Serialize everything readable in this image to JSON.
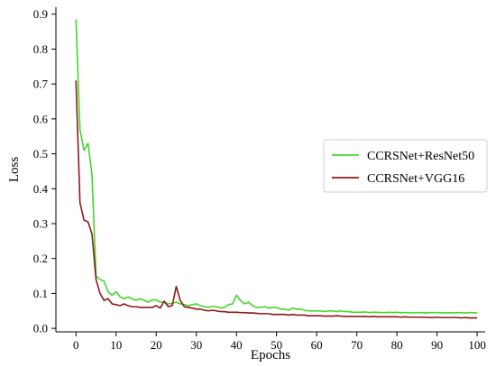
{
  "chart_data": {
    "type": "line",
    "xlabel": "Epochs",
    "ylabel": "Loss",
    "xlim": [
      -5,
      102
    ],
    "ylim": [
      -0.01,
      0.92
    ],
    "x_ticks": [
      0,
      10,
      20,
      30,
      40,
      50,
      60,
      70,
      80,
      90,
      100
    ],
    "y_ticks": [
      0.0,
      0.1,
      0.2,
      0.3,
      0.4,
      0.5,
      0.6,
      0.7,
      0.8,
      0.9
    ],
    "x_tick_labels": [
      "0",
      "10",
      "20",
      "30",
      "40",
      "50",
      "60",
      "70",
      "80",
      "90",
      "100"
    ],
    "y_tick_labels": [
      "0.0",
      "0.1",
      "0.2",
      "0.3",
      "0.4",
      "0.5",
      "0.6",
      "0.7",
      "0.8",
      "0.9"
    ],
    "legend_position": "center-right",
    "x": [
      0,
      1,
      2,
      3,
      4,
      5,
      6,
      7,
      8,
      9,
      10,
      11,
      12,
      13,
      14,
      15,
      16,
      17,
      18,
      19,
      20,
      21,
      22,
      23,
      24,
      25,
      26,
      27,
      28,
      29,
      30,
      31,
      32,
      33,
      34,
      35,
      36,
      37,
      38,
      39,
      40,
      41,
      42,
      43,
      44,
      45,
      46,
      47,
      48,
      49,
      50,
      51,
      52,
      53,
      54,
      55,
      56,
      57,
      58,
      59,
      60,
      61,
      62,
      63,
      64,
      65,
      66,
      67,
      68,
      69,
      70,
      71,
      72,
      73,
      74,
      75,
      76,
      77,
      78,
      79,
      80,
      81,
      82,
      83,
      84,
      85,
      86,
      87,
      88,
      89,
      90,
      91,
      92,
      93,
      94,
      95,
      96,
      97,
      98,
      99,
      100
    ],
    "series": [
      {
        "name": "CCRSNet+ResNet50",
        "color": "#44d62c",
        "values": [
          0.885,
          0.57,
          0.51,
          0.53,
          0.44,
          0.15,
          0.14,
          0.135,
          0.105,
          0.095,
          0.105,
          0.09,
          0.085,
          0.09,
          0.085,
          0.08,
          0.085,
          0.08,
          0.075,
          0.082,
          0.082,
          0.075,
          0.075,
          0.07,
          0.072,
          0.075,
          0.07,
          0.068,
          0.065,
          0.068,
          0.07,
          0.065,
          0.062,
          0.06,
          0.063,
          0.062,
          0.058,
          0.06,
          0.068,
          0.07,
          0.095,
          0.08,
          0.07,
          0.075,
          0.065,
          0.06,
          0.06,
          0.062,
          0.058,
          0.06,
          0.06,
          0.055,
          0.055,
          0.052,
          0.058,
          0.055,
          0.055,
          0.052,
          0.05,
          0.05,
          0.05,
          0.05,
          0.048,
          0.05,
          0.05,
          0.048,
          0.05,
          0.048,
          0.048,
          0.046,
          0.046,
          0.046,
          0.047,
          0.045,
          0.046,
          0.046,
          0.045,
          0.045,
          0.046,
          0.045,
          0.046,
          0.045,
          0.045,
          0.045,
          0.044,
          0.045,
          0.045,
          0.044,
          0.045,
          0.045,
          0.045,
          0.045,
          0.044,
          0.045,
          0.044,
          0.045,
          0.045,
          0.044,
          0.045,
          0.045,
          0.044
        ]
      },
      {
        "name": "CCRSNet+VGG16",
        "color": "#8b1a1a",
        "values": [
          0.71,
          0.36,
          0.31,
          0.305,
          0.27,
          0.14,
          0.1,
          0.08,
          0.085,
          0.07,
          0.068,
          0.065,
          0.07,
          0.065,
          0.062,
          0.062,
          0.06,
          0.06,
          0.06,
          0.06,
          0.065,
          0.058,
          0.078,
          0.062,
          0.065,
          0.12,
          0.08,
          0.062,
          0.06,
          0.058,
          0.055,
          0.055,
          0.052,
          0.05,
          0.052,
          0.05,
          0.048,
          0.048,
          0.046,
          0.046,
          0.046,
          0.045,
          0.045,
          0.044,
          0.044,
          0.043,
          0.042,
          0.042,
          0.042,
          0.04,
          0.04,
          0.04,
          0.04,
          0.038,
          0.04,
          0.038,
          0.038,
          0.038,
          0.036,
          0.036,
          0.036,
          0.036,
          0.035,
          0.035,
          0.035,
          0.036,
          0.035,
          0.034,
          0.034,
          0.034,
          0.034,
          0.034,
          0.034,
          0.033,
          0.034,
          0.033,
          0.033,
          0.033,
          0.033,
          0.033,
          0.033,
          0.032,
          0.033,
          0.032,
          0.032,
          0.032,
          0.032,
          0.032,
          0.031,
          0.031,
          0.032,
          0.031,
          0.031,
          0.031,
          0.031,
          0.031,
          0.03,
          0.031,
          0.03,
          0.03,
          0.03
        ]
      }
    ]
  }
}
